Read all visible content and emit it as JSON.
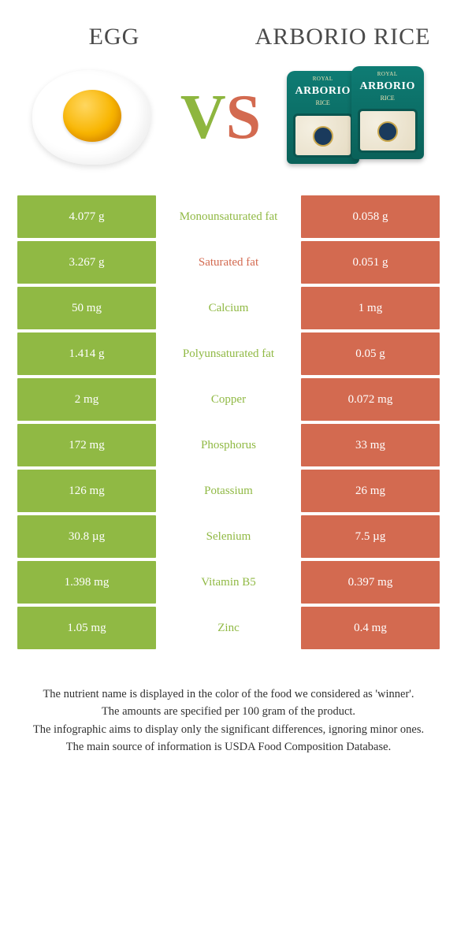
{
  "colors": {
    "green": "#90b944",
    "red": "#d36a50",
    "teal": "#0e7c74"
  },
  "header": {
    "left": "EGG",
    "right": "ARBORIO RICE"
  },
  "vs": {
    "v": "V",
    "s": "S"
  },
  "bag": {
    "top": "ROYAL",
    "brand": "ARBORIO",
    "sub": "RICE"
  },
  "rows": [
    {
      "left": "4.077 g",
      "label": "Monounsaturated fat",
      "right": "0.058 g",
      "winner": "left"
    },
    {
      "left": "3.267 g",
      "label": "Saturated fat",
      "right": "0.051 g",
      "winner": "right"
    },
    {
      "left": "50 mg",
      "label": "Calcium",
      "right": "1 mg",
      "winner": "left"
    },
    {
      "left": "1.414 g",
      "label": "Polyunsaturated fat",
      "right": "0.05 g",
      "winner": "left"
    },
    {
      "left": "2 mg",
      "label": "Copper",
      "right": "0.072 mg",
      "winner": "left"
    },
    {
      "left": "172 mg",
      "label": "Phosphorus",
      "right": "33 mg",
      "winner": "left"
    },
    {
      "left": "126 mg",
      "label": "Potassium",
      "right": "26 mg",
      "winner": "left"
    },
    {
      "left": "30.8 µg",
      "label": "Selenium",
      "right": "7.5 µg",
      "winner": "left"
    },
    {
      "left": "1.398 mg",
      "label": "Vitamin B5",
      "right": "0.397 mg",
      "winner": "left"
    },
    {
      "left": "1.05 mg",
      "label": "Zinc",
      "right": "0.4 mg",
      "winner": "left"
    }
  ],
  "footnotes": [
    "The nutrient name is displayed in the color of the food we considered as 'winner'.",
    "The amounts are specified per 100 gram of the product.",
    "The infographic aims to display only the significant differences, ignoring minor ones.",
    "The main source of information is USDA Food Composition Database."
  ]
}
